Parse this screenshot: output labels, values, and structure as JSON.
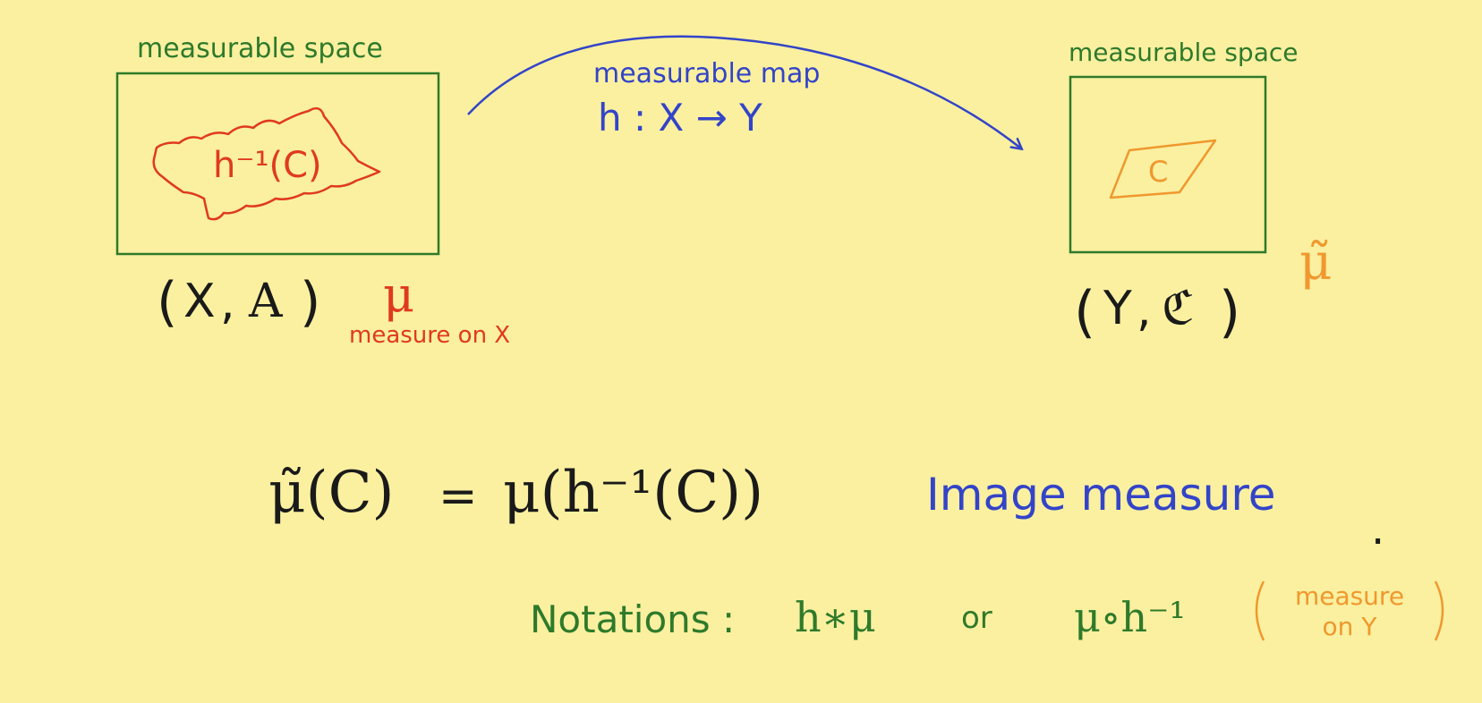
{
  "colors": {
    "background": "#faf0a0",
    "green": "#2e7a2a",
    "red": "#e03a1c",
    "blue": "#3344c8",
    "orange": "#f0982e",
    "black": "#1a1a1a"
  },
  "left_space": {
    "label": "measurable space",
    "set_label": "h⁻¹(C)",
    "pair_open": "(",
    "pair_x": "X",
    "pair_comma": ",",
    "pair_sigma": "A",
    "pair_close": ")",
    "measure_symbol": "μ",
    "measure_caption": "measure on X"
  },
  "map": {
    "label": "measurable map",
    "formula": "h : X → Y"
  },
  "right_space": {
    "label": "measurable space",
    "set_label": "C",
    "pair_open": "(",
    "pair_y": "Y",
    "pair_comma": ",",
    "pair_sigma": "ℭ",
    "pair_close": ")",
    "measure_symbol": "μ̃"
  },
  "equation": {
    "lhs": "μ̃(C)",
    "equals": "=",
    "rhs": "μ(h⁻¹(C))",
    "name": "Image measure"
  },
  "notations": {
    "label": "Notations :",
    "first": "h∗μ",
    "or": "or",
    "second": "μ∘h⁻¹",
    "note_line1": "measure",
    "note_line2": "on Y"
  },
  "dot": "."
}
